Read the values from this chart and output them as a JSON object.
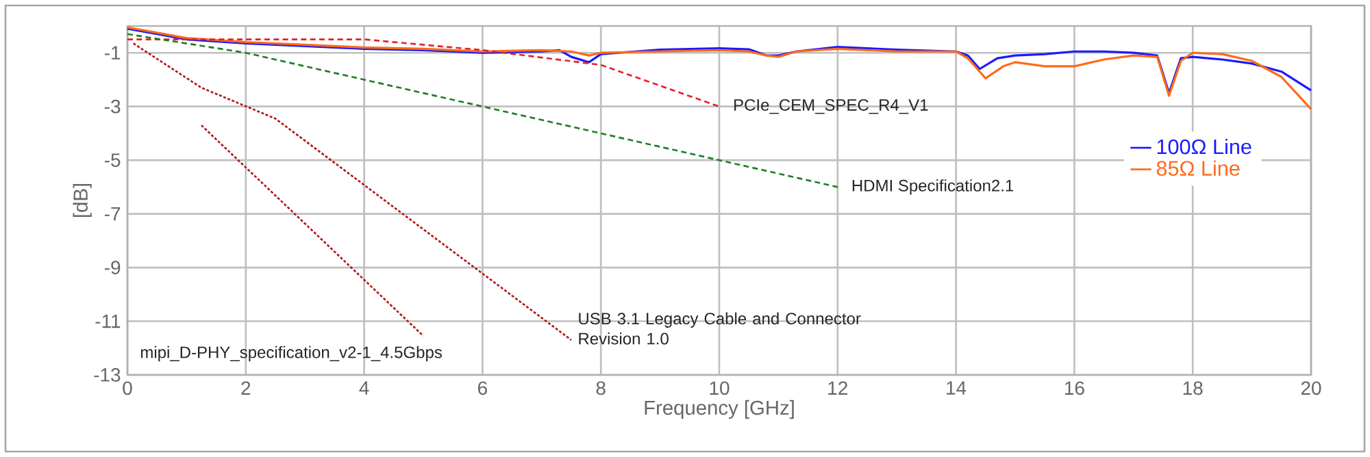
{
  "chart_data": {
    "type": "line",
    "xlabel": "Frequency [GHz]",
    "ylabel": "[dB]",
    "xlim": [
      0,
      20
    ],
    "ylim": [
      -13,
      0
    ],
    "xticks": [
      0,
      2,
      4,
      6,
      8,
      10,
      12,
      14,
      16,
      18,
      20
    ],
    "yticks": [
      -1,
      -3,
      -5,
      -7,
      -9,
      -11,
      -13
    ],
    "grid": true,
    "legend": "right",
    "series": [
      {
        "name": "100Ω Line",
        "color": "#1a1aff",
        "line_style": "solid",
        "x": [
          0,
          0.5,
          1,
          2,
          3,
          4,
          5,
          6,
          7,
          7.3,
          7.5,
          7.8,
          8,
          9,
          10,
          10.5,
          10.8,
          11,
          11.3,
          12,
          13,
          14,
          14.2,
          14.4,
          14.7,
          15,
          15.5,
          16,
          16.5,
          17,
          17.4,
          17.6,
          17.8,
          18,
          18.5,
          19,
          19.5,
          20
        ],
        "values": [
          -0.1,
          -0.3,
          -0.5,
          -0.65,
          -0.75,
          -0.85,
          -0.9,
          -1.0,
          -0.95,
          -0.9,
          -1.15,
          -1.35,
          -1.05,
          -0.88,
          -0.83,
          -0.87,
          -1.1,
          -1.1,
          -0.95,
          -0.78,
          -0.88,
          -0.95,
          -1.1,
          -1.6,
          -1.2,
          -1.1,
          -1.05,
          -0.95,
          -0.95,
          -1.0,
          -1.1,
          -2.5,
          -1.2,
          -1.15,
          -1.25,
          -1.4,
          -1.7,
          -2.4
        ]
      },
      {
        "name": "85Ω Line",
        "color": "#ff6a1a",
        "line_style": "solid",
        "x": [
          0,
          0.5,
          1,
          2,
          3,
          4,
          5,
          6,
          7,
          7.5,
          7.8,
          8,
          9,
          10,
          10.5,
          10.8,
          11,
          11.3,
          12,
          13,
          14,
          14.2,
          14.5,
          14.8,
          15,
          15.5,
          16,
          16.5,
          17,
          17.4,
          17.6,
          17.8,
          18,
          18.5,
          19,
          19.5,
          20
        ],
        "values": [
          -0.05,
          -0.25,
          -0.45,
          -0.6,
          -0.7,
          -0.8,
          -0.85,
          -0.95,
          -0.9,
          -0.95,
          -1.1,
          -1.0,
          -0.95,
          -0.9,
          -0.95,
          -1.1,
          -1.15,
          -0.95,
          -0.85,
          -0.95,
          -0.95,
          -1.2,
          -1.95,
          -1.5,
          -1.35,
          -1.5,
          -1.5,
          -1.25,
          -1.1,
          -1.15,
          -2.6,
          -1.3,
          -1.0,
          -1.05,
          -1.3,
          -1.9,
          -3.1
        ]
      },
      {
        "name": "PCIe_CEM_SPEC_R4_V1",
        "color": "#e52222",
        "line_style": "dashed",
        "x": [
          0,
          4,
          6,
          8,
          10
        ],
        "values": [
          -0.5,
          -0.5,
          -0.9,
          -1.45,
          -3
        ]
      },
      {
        "name": "HDMI Specification2.1",
        "color": "#1f7f1f",
        "line_style": "dashed",
        "x": [
          0,
          2,
          12
        ],
        "values": [
          -0.3,
          -1,
          -6
        ]
      },
      {
        "name": "USB 3.1 Legacy Cable and Connector Revision 1.0",
        "color": "#b01818",
        "line_style": "dotted",
        "x": [
          0.1,
          1.25,
          2.5,
          7.5
        ],
        "values": [
          -0.65,
          -2.3,
          -3.45,
          -11.7
        ]
      },
      {
        "name": "mipi_D-PHY_specification_v2-1_4.5Gbps",
        "color": "#b01818",
        "line_style": "dotted",
        "x": [
          1.25,
          5
        ],
        "values": [
          -3.7,
          -11.55
        ]
      }
    ]
  }
}
